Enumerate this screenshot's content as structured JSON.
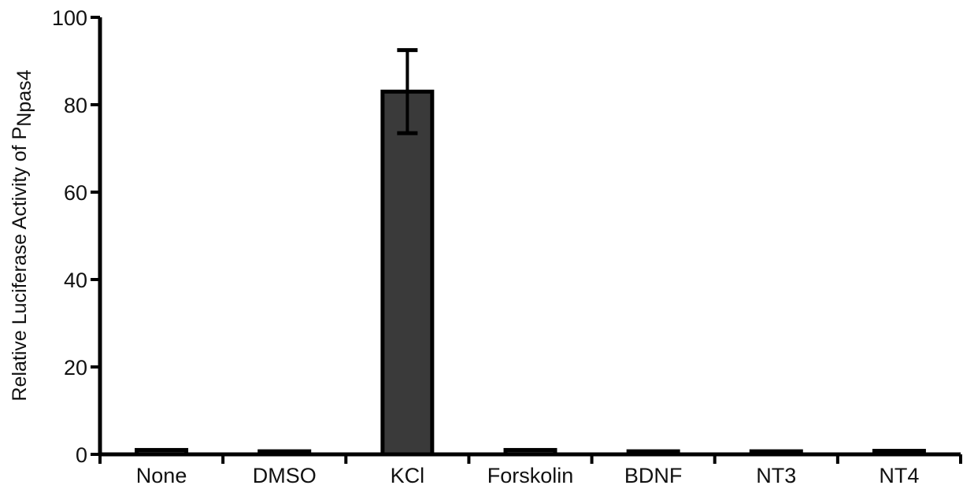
{
  "chart_data": {
    "type": "bar",
    "categories": [
      "None",
      "DMSO",
      "KCl",
      "Forskolin",
      "BDNF",
      "NT3",
      "NT4"
    ],
    "values": [
      1.0,
      0.7,
      83.0,
      1.0,
      0.7,
      0.7,
      0.8
    ],
    "errors": [
      0,
      0,
      9.5,
      0,
      0,
      0,
      0
    ],
    "ylabel": {
      "main": "Relative Luciferase Activity of P",
      "subscript": "Npas4"
    },
    "ylim": [
      0,
      100
    ],
    "yticks": [
      0,
      20,
      40,
      60,
      80,
      100
    ],
    "grid": false,
    "colors": {
      "bar_fill": "#3a3a3a",
      "bar_stroke": "#000000",
      "axis": "#000000"
    }
  }
}
